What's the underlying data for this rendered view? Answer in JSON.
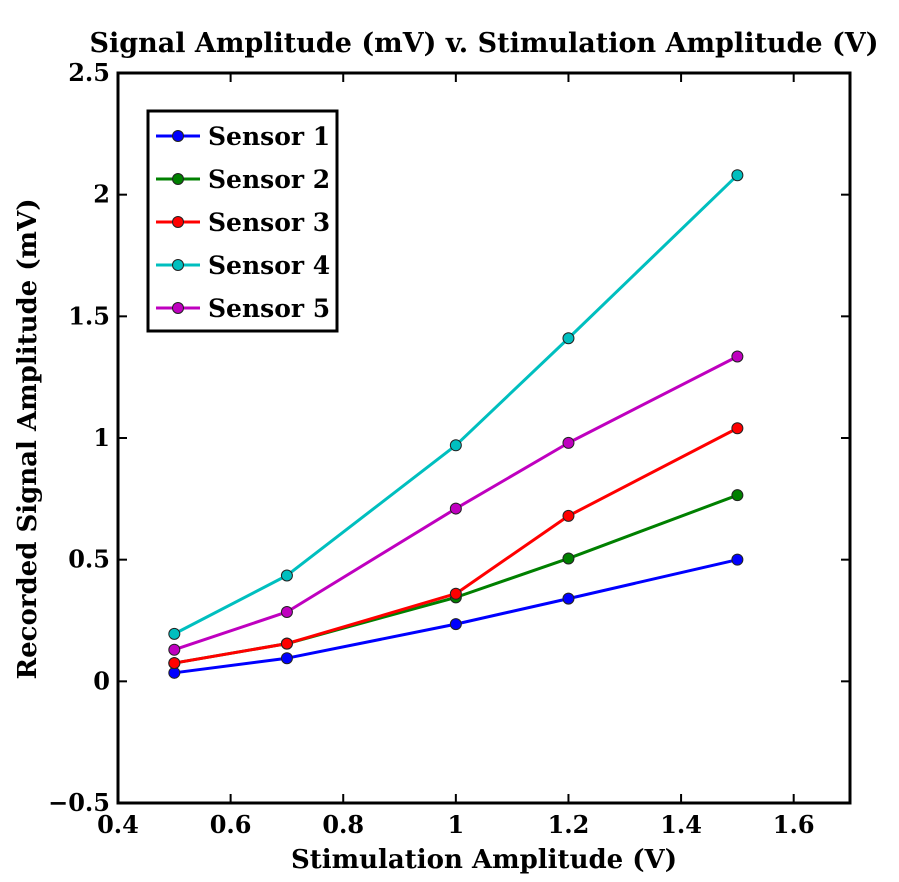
{
  "chart_data": {
    "type": "line",
    "title": "Signal Amplitude (mV) v. Stimulation Amplitude (V)",
    "xlabel": "Stimulation Amplitude (V)",
    "ylabel": "Recorded Signal Amplitude (mV)",
    "xlim": [
      0.4,
      1.7
    ],
    "ylim": [
      -0.5,
      2.5
    ],
    "xticks": [
      0.4,
      0.6,
      0.8,
      1,
      1.2,
      1.4,
      1.6
    ],
    "xtick_labels": [
      "0.4",
      "0.6",
      "0.8",
      "1",
      "1.2",
      "1.4",
      "1.6"
    ],
    "yticks": [
      -0.5,
      0,
      0.5,
      1,
      1.5,
      2,
      2.5
    ],
    "ytick_labels": [
      "−0.5",
      "0",
      "0.5",
      "1",
      "1.5",
      "2",
      "2.5"
    ],
    "grid": false,
    "legend_position": "top-left",
    "x": [
      0.5,
      0.7,
      1.0,
      1.2,
      1.5
    ],
    "series": [
      {
        "name": "Sensor 1",
        "color": "#0000ff",
        "values": [
          0.035,
          0.095,
          0.235,
          0.34,
          0.5
        ]
      },
      {
        "name": "Sensor 2",
        "color": "#008000",
        "values": [
          0.075,
          0.155,
          0.345,
          0.505,
          0.765
        ]
      },
      {
        "name": "Sensor 3",
        "color": "#ff0000",
        "values": [
          0.075,
          0.155,
          0.36,
          0.68,
          1.04
        ]
      },
      {
        "name": "Sensor 4",
        "color": "#00bfbf",
        "values": [
          0.195,
          0.435,
          0.97,
          1.41,
          2.08
        ]
      },
      {
        "name": "Sensor 5",
        "color": "#bf00bf",
        "values": [
          0.13,
          0.285,
          0.71,
          0.98,
          1.335
        ]
      }
    ]
  }
}
